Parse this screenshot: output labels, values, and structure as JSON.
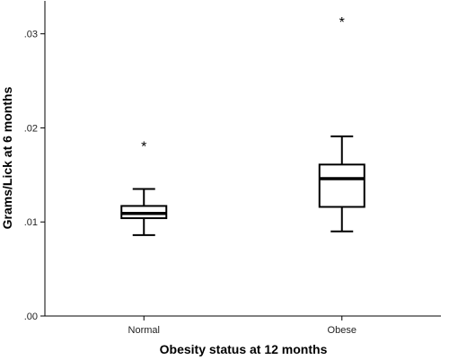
{
  "chart_data": {
    "type": "boxplot",
    "xlabel": "Obesity status at 12 months",
    "ylabel": "Grams/Lick at 6 months",
    "ylim": [
      0.0,
      0.0335
    ],
    "yticks": [
      0.0,
      0.01,
      0.02,
      0.03
    ],
    "ytick_labels": [
      ".00",
      ".01",
      ".02",
      ".03"
    ],
    "grid": false,
    "categories": [
      "Normal",
      "Obese"
    ],
    "boxes": [
      {
        "category": "Normal",
        "whisker_low": 0.0086,
        "q1": 0.0104,
        "median": 0.0109,
        "q3": 0.0117,
        "whisker_high": 0.0135,
        "outliers": [
          0.0183
        ],
        "outlier_symbol": "*"
      },
      {
        "category": "Obese",
        "whisker_low": 0.009,
        "q1": 0.0116,
        "median": 0.0146,
        "q3": 0.0161,
        "whisker_high": 0.0191,
        "outliers": [
          0.0315
        ],
        "outlier_symbol": "*"
      }
    ]
  }
}
